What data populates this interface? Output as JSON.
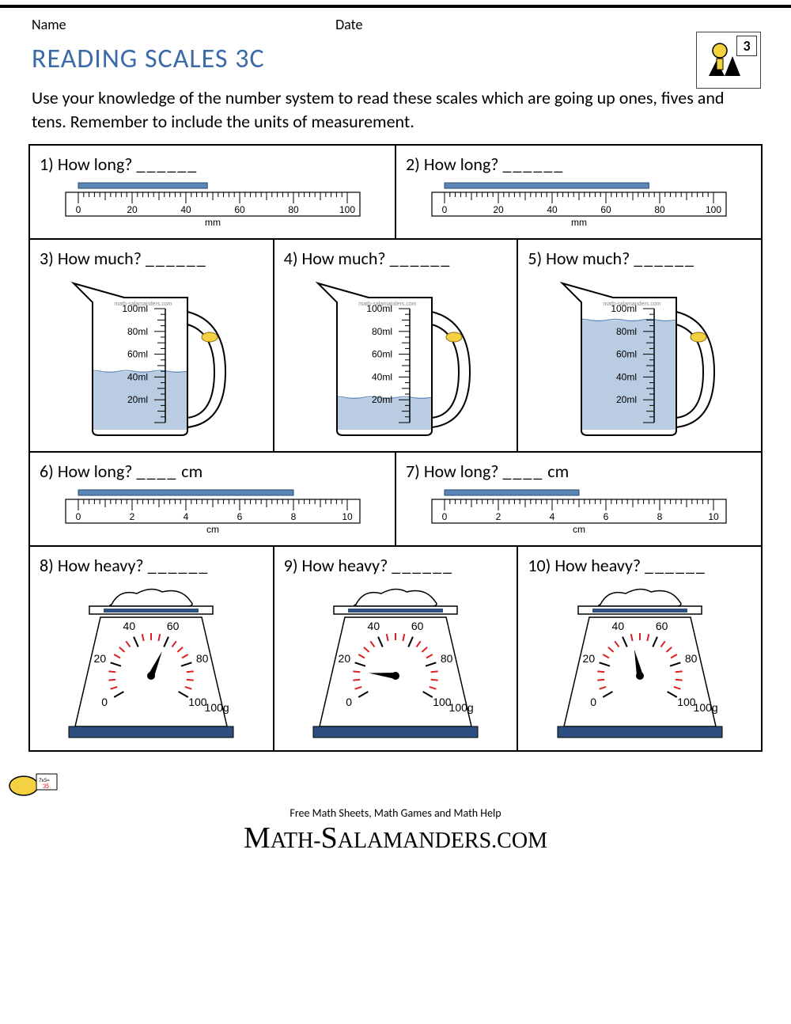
{
  "header": {
    "name_label": "Name",
    "date_label": "Date",
    "title": "READING SCALES 3C",
    "title_color": "#3a6aa8",
    "badge_number": "3"
  },
  "instructions": "Use your knowledge of the number system to read these scales which are going up ones, fives and tens. Remember to include the units of measurement.",
  "colors": {
    "page_bg": "#ffffff",
    "text": "#000000",
    "accent_blue": "#5a86b8",
    "water_fill": "#b9cce2",
    "water_stroke": "#5a86b8",
    "scale_red": "#e02020",
    "scale_base": "#2c4f80",
    "border": "#000000"
  },
  "questions": [
    {
      "n": "1)",
      "prompt": "How long?",
      "blank": "______",
      "type": "ruler-mm",
      "ruler": {
        "min": 0,
        "max": 100,
        "major_step": 20,
        "minor_step": 2,
        "unit_label": "mm",
        "bar_length": 48,
        "bar_color": "#5a86b8"
      }
    },
    {
      "n": "2)",
      "prompt": "How long?",
      "blank": "______",
      "type": "ruler-mm",
      "ruler": {
        "min": 0,
        "max": 100,
        "major_step": 20,
        "minor_step": 2,
        "unit_label": "mm",
        "bar_length": 76,
        "bar_color": "#5a86b8"
      }
    },
    {
      "n": "3)",
      "prompt": "How much?",
      "blank": "______",
      "type": "jug",
      "jug": {
        "min": 0,
        "max": 100,
        "major_step": 20,
        "unit_suffix": "ml",
        "fill_level": 45,
        "watermark": "math-salamanders.com"
      }
    },
    {
      "n": "4)",
      "prompt": "How much?",
      "blank": "______",
      "type": "jug",
      "jug": {
        "min": 0,
        "max": 100,
        "major_step": 20,
        "unit_suffix": "ml",
        "fill_level": 22,
        "watermark": "math-salamanders.com"
      }
    },
    {
      "n": "5)",
      "prompt": "How much?",
      "blank": "______",
      "type": "jug",
      "jug": {
        "min": 0,
        "max": 100,
        "major_step": 20,
        "unit_suffix": "ml",
        "fill_level": 90,
        "watermark": "math-salamanders.com"
      }
    },
    {
      "n": "6)",
      "prompt": "How long?",
      "blank": "____",
      "unit_after": "cm",
      "type": "ruler-cm",
      "ruler": {
        "min": 0,
        "max": 10,
        "major_step": 2,
        "minor_step": 0.2,
        "unit_label": "cm",
        "bar_length": 8,
        "bar_color": "#5a86b8"
      }
    },
    {
      "n": "7)",
      "prompt": "How long?",
      "blank": "____",
      "unit_after": "cm",
      "type": "ruler-cm",
      "ruler": {
        "min": 0,
        "max": 10,
        "major_step": 2,
        "minor_step": 0.2,
        "unit_label": "cm",
        "bar_length": 5,
        "bar_color": "#5a86b8"
      }
    },
    {
      "n": "8)",
      "prompt": "How heavy?",
      "blank": "______",
      "type": "scale",
      "scale": {
        "min": 0,
        "max": 100,
        "major_step": 20,
        "minor_step": 5,
        "unit_label": "100g",
        "needle_value": 60
      }
    },
    {
      "n": "9)",
      "prompt": "How heavy?",
      "blank": "______",
      "type": "scale",
      "scale": {
        "min": 0,
        "max": 100,
        "major_step": 20,
        "minor_step": 5,
        "unit_label": "100g",
        "needle_value": 15
      }
    },
    {
      "n": "10)",
      "prompt": "How heavy?",
      "blank": "______",
      "type": "scale",
      "scale": {
        "min": 0,
        "max": 100,
        "major_step": 20,
        "minor_step": 5,
        "unit_label": "100g",
        "needle_value": 45
      }
    }
  ],
  "footer": {
    "tagline": "Free Math Sheets, Math Games and Math Help",
    "brand_caps": "M",
    "brand_rest1": "ATH-",
    "brand_caps2": "S",
    "brand_rest2": "ALAMANDERS.COM"
  }
}
